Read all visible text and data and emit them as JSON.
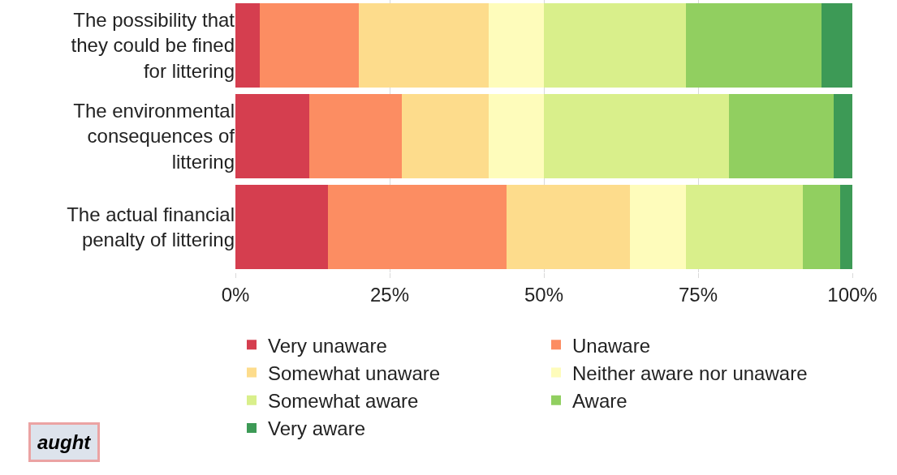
{
  "chart_data": {
    "type": "bar",
    "orientation": "horizontal",
    "stacked": true,
    "categories": [
      "The possibility that they could be fined for littering",
      "The environmental consequences of littering",
      "The actual financial penalty of littering"
    ],
    "series": [
      {
        "name": "Very unaware",
        "color": "#d53e4f",
        "values": [
          4,
          12,
          15
        ]
      },
      {
        "name": "Unaware",
        "color": "#fc8d62",
        "values": [
          16,
          15,
          29
        ]
      },
      {
        "name": "Somewhat unaware",
        "color": "#fddc8c",
        "values": [
          21,
          14,
          20
        ]
      },
      {
        "name": "Neither aware nor unaware",
        "color": "#fefcbb",
        "values": [
          9,
          9,
          9
        ]
      },
      {
        "name": "Somewhat aware",
        "color": "#d9ef8b",
        "values": [
          23,
          30,
          19
        ]
      },
      {
        "name": "Aware",
        "color": "#91cf60",
        "values": [
          22,
          17,
          6
        ]
      },
      {
        "name": "Very aware",
        "color": "#3d9a56",
        "values": [
          5,
          3,
          2
        ]
      }
    ],
    "xlim": [
      0,
      100
    ],
    "xticks": [
      {
        "value": 0,
        "label": "0%"
      },
      {
        "value": 25,
        "label": "25%"
      },
      {
        "value": 50,
        "label": "50%"
      },
      {
        "value": 75,
        "label": "75%"
      },
      {
        "value": 100,
        "label": "100%"
      }
    ],
    "grid": "x",
    "legend": "bottom",
    "annotations": [
      "aught"
    ]
  }
}
